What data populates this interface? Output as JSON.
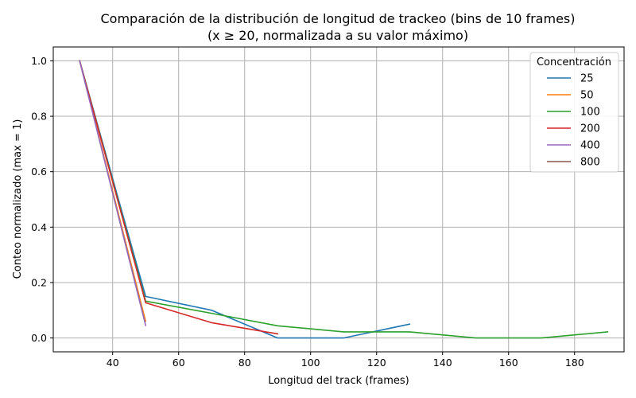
{
  "chart_data": {
    "type": "line",
    "title_line1": "Comparación de la distribución de longitud de trackeo (bins de 10 frames)",
    "title_line2": "(x ≥ 20, normalizada a su valor máximo)",
    "xlabel": "Longitud del track (frames)",
    "ylabel": "Conteo normalizado (max = 1)",
    "xlim": [
      22,
      195
    ],
    "ylim": [
      -0.05,
      1.05
    ],
    "xticks": [
      40,
      60,
      80,
      100,
      120,
      140,
      160,
      180
    ],
    "yticks": [
      0.0,
      0.2,
      0.4,
      0.6,
      0.8,
      1.0
    ],
    "xtick_labels": [
      "40",
      "60",
      "80",
      "100",
      "120",
      "140",
      "160",
      "180"
    ],
    "ytick_labels": [
      "0.0",
      "0.2",
      "0.4",
      "0.6",
      "0.8",
      "1.0"
    ],
    "grid": true,
    "legend_title": "Concentración",
    "legend_position": "top-right",
    "series": [
      {
        "name": "25",
        "color": "#1f77b4",
        "x": [
          30,
          50,
          70,
          90,
          110,
          130
        ],
        "y": [
          1.0,
          0.15,
          0.1,
          0.0,
          0.0,
          0.05
        ]
      },
      {
        "name": "50",
        "color": "#ff7f0e",
        "x": [
          30,
          50
        ],
        "y": [
          1.0,
          0.06
        ]
      },
      {
        "name": "100",
        "color": "#2ca02c",
        "x": [
          30,
          50,
          70,
          90,
          110,
          130,
          150,
          170,
          190
        ],
        "y": [
          1.0,
          0.133,
          0.089,
          0.044,
          0.022,
          0.022,
          0.0,
          0.0,
          0.022
        ]
      },
      {
        "name": "200",
        "color": "#d62728",
        "x": [
          30,
          50,
          70,
          90
        ],
        "y": [
          1.0,
          0.127,
          0.055,
          0.015
        ]
      },
      {
        "name": "400",
        "color": "#9467bd",
        "x": [
          30,
          50
        ],
        "y": [
          1.0,
          0.045
        ]
      },
      {
        "name": "800",
        "color": "#8c564b",
        "x": [],
        "y": []
      }
    ]
  }
}
